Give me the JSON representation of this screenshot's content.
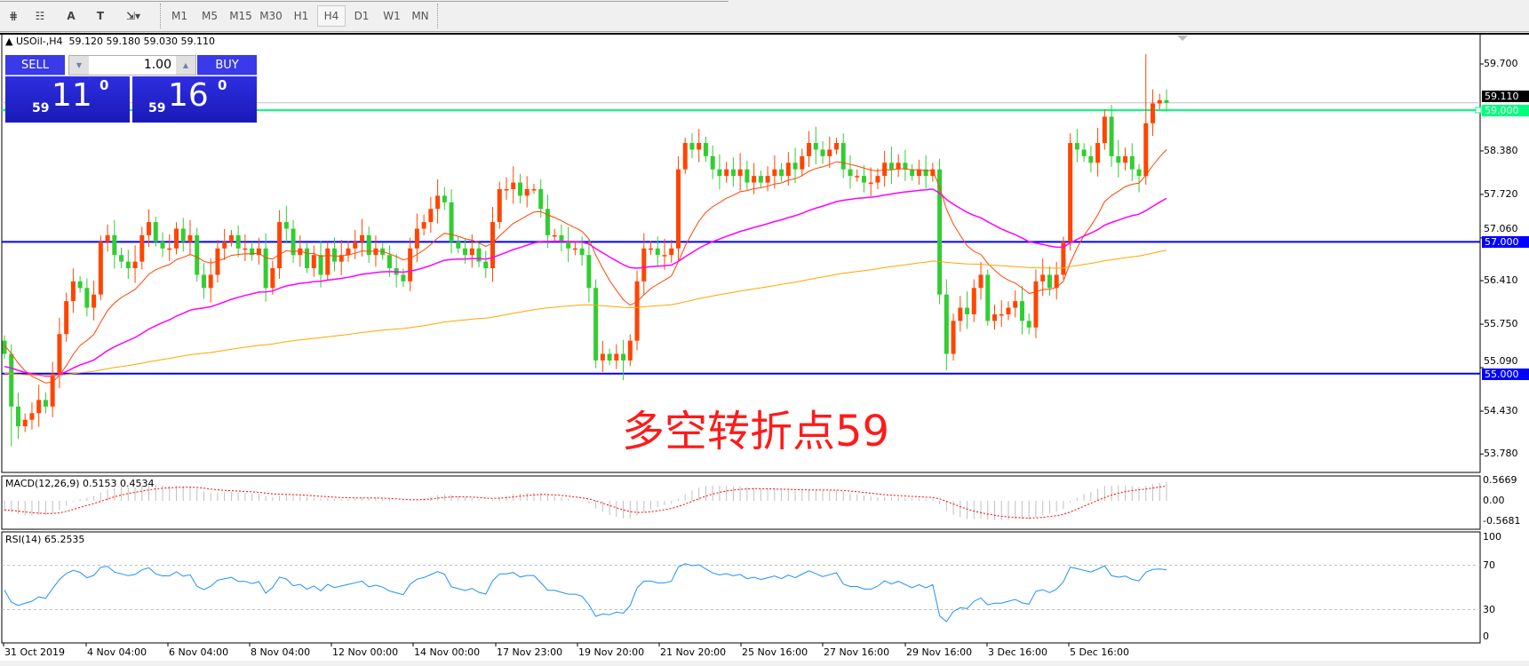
{
  "toolbar": {
    "tools": [
      {
        "name": "elliott-lines-icon",
        "glyph": "⋕"
      },
      {
        "name": "fibonacci-fan-icon",
        "glyph": "☷"
      },
      {
        "name": "text-label-icon",
        "glyph": "A"
      },
      {
        "name": "text-box-icon",
        "glyph": "T"
      },
      {
        "name": "arrows-dropdown-icon",
        "glyph": "⇲▾"
      }
    ],
    "timeframes": [
      "M1",
      "M5",
      "M15",
      "M30",
      "H1",
      "H4",
      "D1",
      "W1",
      "MN"
    ],
    "selected_timeframe": "H4"
  },
  "chart": {
    "symbol_info": "USOil-,H4  59.120 59.180 59.030 59.110",
    "annotation": "多空转折点59",
    "colors": {
      "bull": "#ff4500",
      "bear": "#32cd32",
      "ma_fast": "#ff4500",
      "ma_mid": "#ff00ff",
      "ma_slow": "#ffa500",
      "level_green": "#00ff7f",
      "level_blue": "#0000ff",
      "price_line": "#c0c0c0",
      "rsi": "#1e90ff",
      "macd_signal": "#ff0000",
      "macd_hist": "#c0c0c0"
    }
  },
  "trade_panel": {
    "sell_label": "SELL",
    "buy_label": "BUY",
    "lot": "1.00",
    "sell_price": {
      "prefix": "59",
      "main": "11",
      "sup": "0"
    },
    "buy_price": {
      "prefix": "59",
      "main": "16",
      "sup": "0"
    }
  },
  "price_axis": {
    "ticks": [
      "59.700",
      "58.380",
      "57.720",
      "57.060",
      "56.410",
      "55.750",
      "55.090",
      "54.430",
      "53.780"
    ],
    "current_price": "59.110",
    "levels": [
      {
        "value": "59.000",
        "color": "#00ff7f"
      },
      {
        "value": "57.000",
        "color": "#0000ff"
      },
      {
        "value": "55.000",
        "color": "#0000ff"
      }
    ]
  },
  "macd": {
    "label": "MACD(12,26,9) 0.5153 0.4534",
    "ticks": [
      "0.5669",
      "0.00",
      "-0.5681"
    ]
  },
  "rsi": {
    "label": "RSI(14) 65.2535",
    "ticks": [
      "100",
      "70",
      "30",
      "0"
    ]
  },
  "time_axis": [
    "31 Oct 2019",
    "4 Nov 04:00",
    "6 Nov 04:00",
    "8 Nov 04:00",
    "12 Nov 00:00",
    "14 Nov 00:00",
    "17 Nov 23:00",
    "19 Nov 20:00",
    "21 Nov 20:00",
    "25 Nov 16:00",
    "27 Nov 16:00",
    "29 Nov 16:00",
    "3 Dec 16:00",
    "5 Dec 16:00"
  ],
  "chart_data": {
    "type": "candlestick",
    "symbol": "USOil-",
    "timeframe": "H4",
    "ylim": [
      53.6,
      59.9
    ],
    "close": [
      55.3,
      54.5,
      54.2,
      54.3,
      54.4,
      54.6,
      54.5,
      55.0,
      55.6,
      56.1,
      56.4,
      56.3,
      56.0,
      56.2,
      57.0,
      57.1,
      56.8,
      56.7,
      56.6,
      56.7,
      57.1,
      57.3,
      57.0,
      56.9,
      56.9,
      57.2,
      57.0,
      57.1,
      56.5,
      56.3,
      56.5,
      56.9,
      57.0,
      57.1,
      56.9,
      56.9,
      56.8,
      56.9,
      56.3,
      56.6,
      57.3,
      57.2,
      56.8,
      56.9,
      56.6,
      56.8,
      56.5,
      56.9,
      56.7,
      56.8,
      56.9,
      57.0,
      57.1,
      56.8,
      56.9,
      56.8,
      56.6,
      56.5,
      56.4,
      56.9,
      57.2,
      57.3,
      57.5,
      57.7,
      57.6,
      57.0,
      56.9,
      56.8,
      56.9,
      56.7,
      56.6,
      57.3,
      57.8,
      57.8,
      57.9,
      57.7,
      57.8,
      57.8,
      57.5,
      57.1,
      57.1,
      57.0,
      56.9,
      56.9,
      56.8,
      56.3,
      55.2,
      55.3,
      55.2,
      55.3,
      55.2,
      55.5,
      56.4,
      56.9,
      56.9,
      56.8,
      56.8,
      56.9,
      58.1,
      58.5,
      58.4,
      58.5,
      58.3,
      58.1,
      58.0,
      58.1,
      58.0,
      58.1,
      57.9,
      58.0,
      57.9,
      58.0,
      58.1,
      58.0,
      58.2,
      58.1,
      58.3,
      58.5,
      58.4,
      58.3,
      58.4,
      58.5,
      58.1,
      58.0,
      58.0,
      57.9,
      57.9,
      58.0,
      58.2,
      58.1,
      58.2,
      58.1,
      58.0,
      58.1,
      58.0,
      58.1,
      56.2,
      55.3,
      55.8,
      56.0,
      55.9,
      56.3,
      56.5,
      55.8,
      55.9,
      55.9,
      56.0,
      56.1,
      55.8,
      55.7,
      56.4,
      56.5,
      56.3,
      56.5,
      57.0,
      58.5,
      58.4,
      58.3,
      58.2,
      58.5,
      58.9,
      58.3,
      58.2,
      58.3,
      58.1,
      58.0,
      58.8,
      59.1,
      59.15,
      59.11
    ],
    "first_open": 55.5,
    "ma_start": {
      "fast": 55.45,
      "mid": 55.1,
      "slow": 55.0
    },
    "macd_last": {
      "main": 0.5153,
      "signal": 0.4534
    },
    "rsi_last": 65.2535,
    "rsi_levels": [
      70,
      30
    ]
  }
}
